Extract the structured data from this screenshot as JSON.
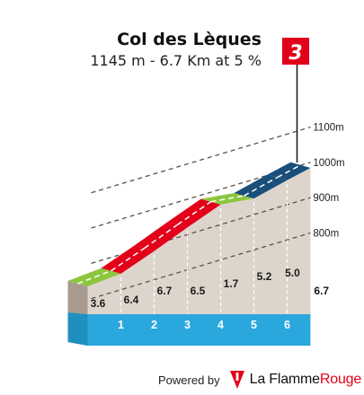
{
  "header": {
    "climb_name": "Col des Lèques",
    "stats": "1145 m - 6.7 Km at 5 %"
  },
  "category_badge": "3",
  "footer": {
    "powered_by": "Powered by",
    "brand_name": "La Flamme",
    "brand_accent": "Rouge"
  },
  "colors": {
    "green": "#8cc63f",
    "red": "#e2001a",
    "dark_blue": "#1a4f7a",
    "terrain": "#ddd5cc",
    "terrain_side": "#a89b8f",
    "base_blue": "#2aa7dc",
    "badge": "#e2001a"
  },
  "chart_data": {
    "type": "area",
    "x_unit": "km",
    "y_unit": "m",
    "km_markers": [
      1,
      2,
      3,
      4,
      5,
      6
    ],
    "total_km": 6.7,
    "final_label": "6.7",
    "segments": [
      {
        "from_km": 0,
        "to_km": 1,
        "gradient": 3.6,
        "color_class": "green"
      },
      {
        "from_km": 1,
        "to_km": 2,
        "gradient": 6.4,
        "color_class": "red"
      },
      {
        "from_km": 2,
        "to_km": 3,
        "gradient": 6.7,
        "color_class": "red"
      },
      {
        "from_km": 3,
        "to_km": 4,
        "gradient": 6.5,
        "color_class": "red"
      },
      {
        "from_km": 4,
        "to_km": 5,
        "gradient": 1.7,
        "color_class": "green"
      },
      {
        "from_km": 5,
        "to_km": 6,
        "gradient": 5.2,
        "color_class": "dark_blue"
      },
      {
        "from_km": 6,
        "to_km": 6.7,
        "gradient": 5.0,
        "color_class": "dark_blue"
      }
    ],
    "gradient_labels": [
      "3.6",
      "6.4",
      "6.7",
      "6.5",
      "1.7",
      "5.2",
      "5.0"
    ],
    "altitude_gridlines": [
      {
        "elevation": 1100,
        "label": "1100m"
      },
      {
        "elevation": 1000,
        "label": "1000m"
      },
      {
        "elevation": 900,
        "label": "900m"
      },
      {
        "elevation": 800,
        "label": "800m"
      }
    ],
    "summit_elevation": 1145
  }
}
